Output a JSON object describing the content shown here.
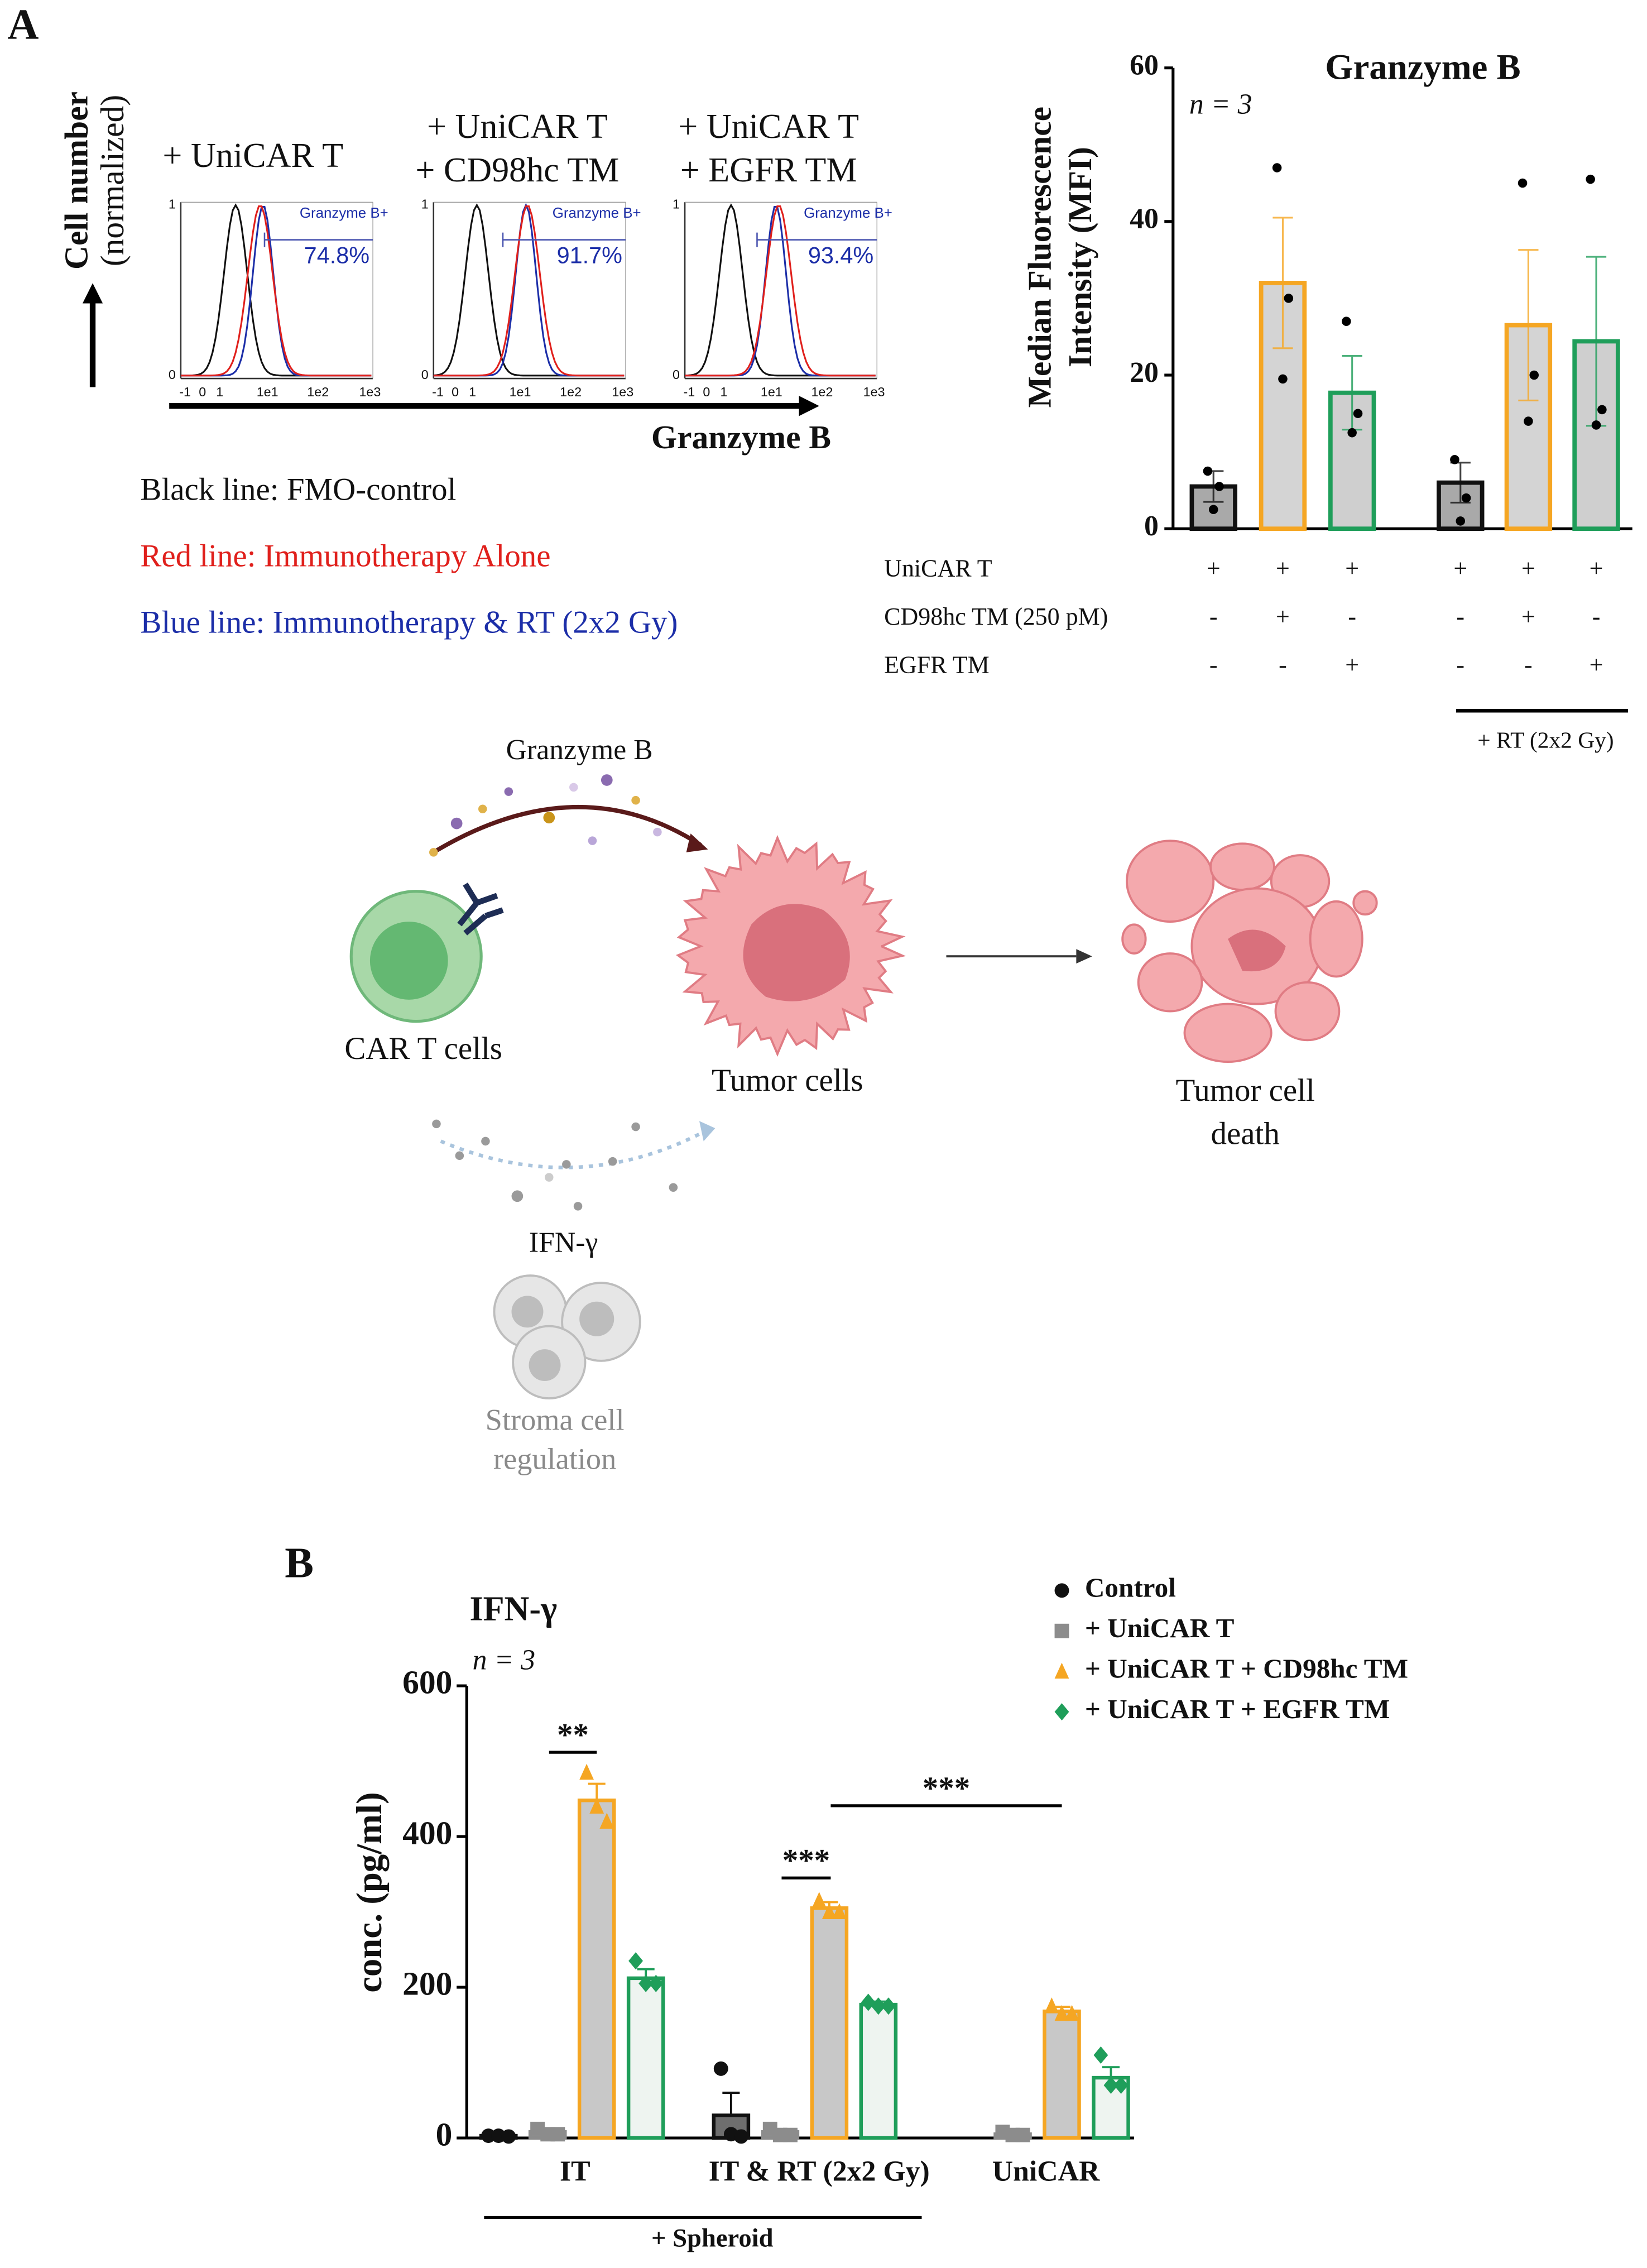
{
  "panel_a": {
    "label": "A",
    "flow": {
      "y_label": [
        "Cell number",
        "(normalized)"
      ],
      "x_label": "Granzyme B",
      "xticks": [
        "-1",
        "0",
        "1",
        "1e1",
        "1e2",
        "1e3"
      ],
      "yticks": [
        "0",
        "1"
      ],
      "plots": [
        {
          "title": [
            "+ UniCAR T"
          ],
          "gate": "Granzyme B+",
          "percent": "74.8%"
        },
        {
          "title": [
            "+ UniCAR T",
            "+ CD98hc TM"
          ],
          "gate": "Granzyme B+",
          "percent": "91.7%"
        },
        {
          "title": [
            "+ UniCAR T",
            "+ EGFR TM"
          ],
          "gate": "Granzyme B+",
          "percent": "93.4%"
        }
      ]
    },
    "legend": [
      {
        "text": "Black line: FMO-control",
        "color": "#111111"
      },
      {
        "text": "Red line: Immunotherapy Alone",
        "color": "#e0201c"
      },
      {
        "text": "Blue line: Immunotherapy & RT (2x2 Gy)",
        "color": "#1c2ea8"
      }
    ]
  },
  "chart_data": [
    {
      "type": "bar",
      "title": "Granzyme B",
      "annotation": "n = 3",
      "ylabel": [
        "Median Fluorescence",
        "Intensity (MFI)"
      ],
      "ylim": [
        0,
        60
      ],
      "yticks": [
        0,
        20,
        40,
        60
      ],
      "values": [
        5.5,
        32,
        17.7,
        6,
        26.5,
        24.4
      ],
      "errors": [
        2,
        8.5,
        4.8,
        2.6,
        9.8,
        11
      ],
      "points": [
        [
          7.5,
          5.5,
          2.5
        ],
        [
          47,
          30,
          19.5
        ],
        [
          27,
          15,
          12.5
        ],
        [
          9,
          4,
          1
        ],
        [
          45,
          20,
          14
        ],
        [
          45.5,
          15.5,
          13.5
        ]
      ],
      "colors": [
        "#111111",
        "#f5a623",
        "#1f9e5a",
        "#111111",
        "#f5a623",
        "#1f9e5a"
      ],
      "fills": [
        "#a9a9a9",
        "#d4d4d4",
        "#cfcfcf",
        "#a9a9a9",
        "#d4d4d4",
        "#cfcfcf"
      ],
      "conditions": [
        {
          "label": "UniCAR T",
          "marks": [
            "+",
            "+",
            "+",
            "+",
            "+",
            "+"
          ]
        },
        {
          "label": "CD98hc TM (250 pM)",
          "marks": [
            "-",
            "+",
            "-",
            "-",
            "+",
            "-"
          ]
        },
        {
          "label": "EGFR TM",
          "marks": [
            "-",
            "-",
            "+",
            "-",
            "-",
            "+"
          ]
        }
      ],
      "group_label": "+ RT (2x2 Gy)"
    },
    {
      "type": "bar",
      "title": "IFN-γ",
      "annotation": "n = 3",
      "ylabel": "conc. (pg/ml)",
      "ylim": [
        0,
        600
      ],
      "yticks": [
        0,
        200,
        400,
        600
      ],
      "categories": [
        "IT",
        "IT & RT (2x2 Gy)",
        "UniCAR"
      ],
      "group_label": "+ Spheroid",
      "significance": [
        "**",
        "***",
        "***"
      ],
      "legend": "top-right",
      "series": [
        {
          "name": "Control",
          "color": "#111111",
          "fill": "#6e6e6e",
          "marker": "circle",
          "values": [
            3,
            30,
            null
          ],
          "errors": [
            1,
            30,
            null
          ],
          "points": [
            [
              3,
              3,
              2
            ],
            [
              92,
              5,
              2
            ],
            null
          ]
        },
        {
          "name": "+ UniCAR T",
          "color": "#8c8c8c",
          "fill": "#bdbdbd",
          "marker": "square",
          "values": [
            8,
            8,
            5
          ],
          "errors": [
            3,
            3,
            2
          ],
          "points": [
            [
              12,
              5,
              5
            ],
            [
              12,
              4,
              4
            ],
            [
              8,
              4,
              4
            ]
          ]
        },
        {
          "name": "+ UniCAR T + CD98hc TM",
          "color": "#f5a623",
          "fill": "#c8c8c8",
          "marker": "triangle",
          "values": [
            448,
            305,
            168
          ],
          "errors": [
            22,
            8,
            6
          ],
          "points": [
            [
              485,
              440,
              420
            ],
            [
              315,
              300,
              300
            ],
            [
              175,
              165,
              165
            ]
          ]
        },
        {
          "name": "+ UniCAR T + EGFR TM",
          "color": "#1f9e5a",
          "fill": "#eef4f0",
          "marker": "diamond",
          "values": [
            212,
            177,
            80
          ],
          "errors": [
            12,
            4,
            14
          ],
          "points": [
            [
              235,
              205,
              205
            ],
            [
              180,
              175,
              175
            ],
            [
              110,
              70,
              70
            ]
          ]
        }
      ]
    }
  ],
  "panel_b": {
    "label": "B"
  },
  "diagram": {
    "granzyme": "Granzyme B",
    "car_t": "CAR T cells",
    "tumor": "Tumor cells",
    "death": [
      "Tumor cell",
      "death"
    ],
    "ifn": "IFN-γ",
    "stroma": [
      "Stroma cell",
      "regulation"
    ]
  }
}
